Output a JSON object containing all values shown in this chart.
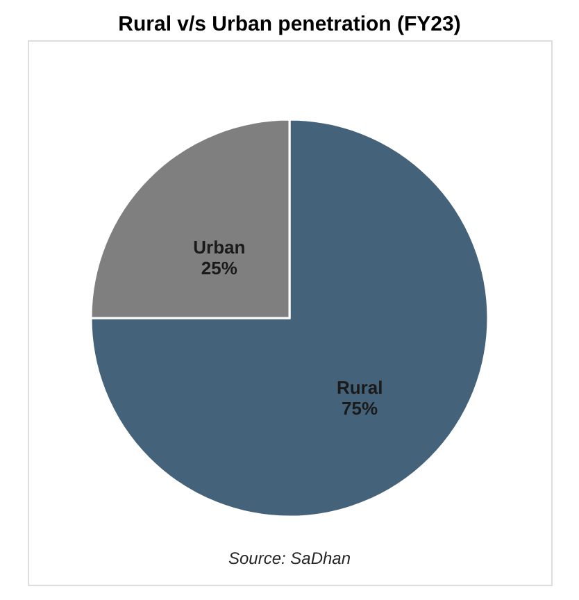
{
  "chart_data": {
    "type": "pie",
    "title": "Rural v/s Urban penetration (FY23)",
    "categories": [
      "Rural",
      "Urban"
    ],
    "values": [
      75,
      25
    ],
    "colors": [
      "#44637a",
      "#7f7f7f"
    ],
    "value_labels": [
      "75%",
      "25%"
    ],
    "legend": false,
    "annotations": [
      "Source: SaDhan"
    ]
  }
}
